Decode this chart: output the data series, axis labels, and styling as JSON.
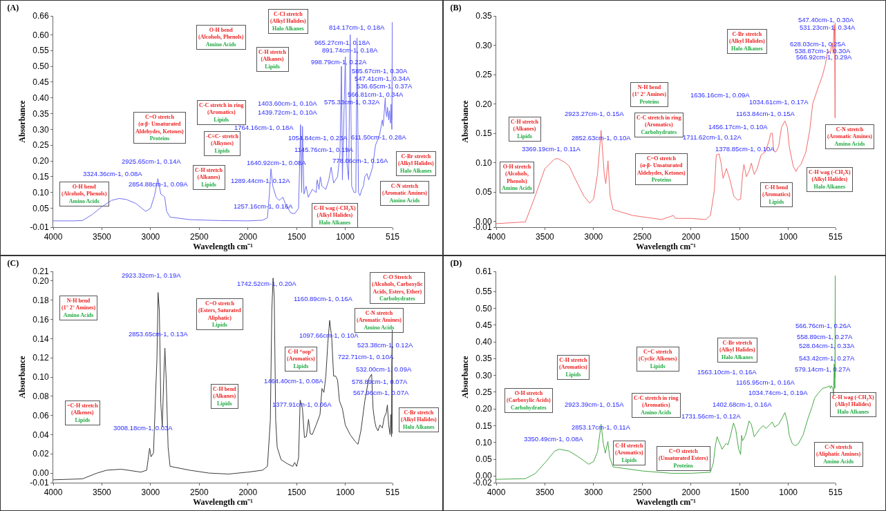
{
  "chart_data": [
    {
      "type": "line",
      "title": "(A)",
      "xlabel": "Wavelength cm⁻¹",
      "ylabel": "Absorbance",
      "xlim": [
        4000,
        515
      ],
      "xticks": [
        4000,
        3500,
        3000,
        2500,
        2000,
        1500,
        1000,
        515
      ],
      "ylim": [
        -0.01,
        0.66
      ],
      "yticks": [
        -0.01,
        0.05,
        {
          "value": 0.1,
          "label": "0.10"
        },
        0.15,
        {
          "value": 0.2,
          "label": "0.20"
        },
        0.25,
        {
          "value": 0.3,
          "label": "0.30"
        },
        0.35,
        {
          "value": 0.4,
          "label": "0.40"
        },
        0.45,
        {
          "value": 0.5,
          "label": "0.50"
        },
        0.55,
        {
          "value": 0.6,
          "label": "0.60"
        },
        0.66
      ],
      "x": [
        4000,
        3800,
        3700,
        3600,
        3500,
        3400,
        3324,
        3250,
        3150,
        3050,
        3000,
        2960,
        2925,
        2895,
        2870,
        2855,
        2835,
        2800,
        2600,
        2300,
        2000,
        1850,
        1800,
        1780,
        1764,
        1745,
        1710,
        1680,
        1641,
        1610,
        1560,
        1520,
        1480,
        1460,
        1448,
        1440,
        1425,
        1403,
        1380,
        1340,
        1300,
        1289,
        1270,
        1257,
        1240,
        1200,
        1170,
        1146,
        1120,
        1080,
        1055,
        1040,
        1030,
        1000,
        985,
        966,
        950,
        935,
        910,
        892,
        880,
        865,
        850,
        830,
        814,
        800,
        778,
        760,
        720,
        690,
        650,
        620,
        611,
        590,
        585,
        575,
        567,
        555,
        547,
        537,
        530,
        522,
        518,
        515
      ],
      "series": [
        {
          "color": "#6f6ff2",
          "values": [
            0.01,
            0.01,
            0.011,
            0.03,
            0.055,
            0.075,
            0.081,
            0.078,
            0.065,
            0.04,
            0.05,
            0.09,
            0.144,
            0.095,
            0.09,
            0.085,
            0.04,
            0.022,
            0.014,
            0.011,
            0.01,
            0.012,
            0.02,
            0.095,
            0.175,
            0.12,
            0.085,
            0.075,
            0.085,
            0.06,
            0.035,
            0.033,
            0.05,
            0.315,
            0.1,
            0.31,
            0.095,
            0.12,
            0.085,
            0.11,
            0.1,
            0.14,
            0.11,
            0.15,
            0.12,
            0.11,
            0.14,
            0.18,
            0.13,
            0.15,
            0.22,
            0.5,
            0.14,
            0.53,
            0.2,
            0.14,
            0.6,
            0.12,
            0.1,
            0.1,
            0.59,
            0.1,
            0.09,
            0.11,
            0.12,
            0.15,
            0.16,
            0.14,
            0.18,
            0.25,
            0.28,
            0.33,
            0.31,
            0.4,
            0.36,
            0.34,
            0.37,
            0.33,
            0.36,
            0.32,
            0.38,
            0.3,
            0.64,
            0.33
          ]
        }
      ],
      "annotations": [
        "C-Cl stretch\n(Alkyl Halides)\nHalo Alkanes",
        "O-H bend\n(Alcohols, Phenols)\nAmino Acids",
        "C-H stretch\n(Alkanes)\nLipids",
        "C-C stretch in ring\n(Aromatics)\nLipids",
        "C=O stretch\n(α-β- Unsaturated\nAldehydes, Ketones)\nProteins",
        "-C≡C- stretch\n(Alkynes)\nLipids",
        "C-H stretch\n(Alkanes)\nLipids",
        "O-H bend\n(Alcohols, Phenols)\nAmino Acids",
        "C-H wag (-CH₂X)\n(Alkyl Halides)\nHalo Alkanes",
        "C-N stretch\n(Aromatic Amines)\nAmino Acids",
        "C-Br stretch\n(Alkyl Halides)\nHalo Alkanes",
        "814.17cm-1, 0.18A",
        "965.27cm-1, 0.18A",
        "891.74cm-1, 0.18A",
        "998.79cm-1, 0.22A",
        "585.67cm-1, 0.30A",
        "547.41cm-1, 0.34A",
        "536.65cm-1, 0.37A",
        "566.81cm-1, 0.34A",
        "575.33cm-1, 0.32A",
        "611.50cm-1, 0.28A",
        "1403.60cm-1, 0.10A",
        "1439.72cm-1, 0.10A",
        "1764.16cm-1, 0.18A",
        "1054.84cm-1, 0.23A",
        "1145.76cm-1, 0.19A",
        "778.06cm-1, 0.16A",
        "1640.92cm-1, 0.08A",
        "1289.44cm-1, 0.12A",
        "1257.16cm-1, 0.16A",
        "2925.65cm-1, 0.14A",
        "2854.88cm-1, 0.09A",
        "3324.36cm-1, 0.08A"
      ]
    },
    {
      "type": "line",
      "title": "(B)",
      "xlabel": "Wavelength cm⁻¹",
      "ylabel": "Absorbance",
      "xlim": [
        4000,
        515
      ],
      "xticks": [
        4000,
        3500,
        3000,
        2500,
        2000,
        1500,
        1000,
        515
      ],
      "ylim": [
        -0.01,
        0.35
      ],
      "yticks": [
        -0.01,
        {
          "value": 0,
          "label": "0.00"
        },
        0.05,
        {
          "value": 0.1,
          "label": "0.10"
        },
        0.15,
        {
          "value": 0.2,
          "label": "0.20"
        },
        0.25,
        {
          "value": 0.3,
          "label": "0.30"
        },
        0.35
      ],
      "x": [
        4000,
        3700,
        3600,
        3500,
        3400,
        3369,
        3300,
        3250,
        3200,
        3100,
        3040,
        3000,
        2960,
        2923,
        2890,
        2875,
        2852,
        2830,
        2800,
        2600,
        2300,
        2180,
        2160,
        2000,
        1850,
        1800,
        1760,
        1740,
        1712,
        1690,
        1670,
        1636,
        1600,
        1560,
        1520,
        1490,
        1470,
        1456,
        1430,
        1400,
        1379,
        1350,
        1320,
        1280,
        1240,
        1200,
        1180,
        1164,
        1150,
        1130,
        1100,
        1070,
        1035,
        1010,
        990,
        950,
        920,
        900,
        870,
        820,
        780,
        750,
        700,
        650,
        620,
        600,
        580,
        567,
        555,
        547,
        540,
        531,
        525,
        520,
        517,
        515
      ],
      "series": [
        {
          "color": "#f26a6a",
          "values": [
            -0.004,
            -0.001,
            0.043,
            0.09,
            0.106,
            0.107,
            0.101,
            0.094,
            0.076,
            0.043,
            0.031,
            0.038,
            0.08,
            0.155,
            0.08,
            0.064,
            0.103,
            0.043,
            0.02,
            0.01,
            0.003,
            0.01,
            0.005,
            0.005,
            0.003,
            0.01,
            0.052,
            0.113,
            0.115,
            0.099,
            0.073,
            0.09,
            0.071,
            0.043,
            0.036,
            0.038,
            0.08,
            0.097,
            0.076,
            0.087,
            0.099,
            0.08,
            0.09,
            0.113,
            0.118,
            0.136,
            0.15,
            0.15,
            0.12,
            0.118,
            0.127,
            0.16,
            0.171,
            0.16,
            0.127,
            0.094,
            0.085,
            0.092,
            0.097,
            0.118,
            0.155,
            0.2,
            0.225,
            0.248,
            0.267,
            0.286,
            0.29,
            0.288,
            0.3,
            0.304,
            0.286,
            0.335,
            0.328,
            0.176,
            0.338,
            0.216
          ]
        }
      ],
      "annotations": [
        "C-Br stretch\n(Alkyl Halides)\nHalo Alkanes",
        "N-H bend\n(1° 2° Amines)\nProteins",
        "C-H stretch\n(Alkanes)\nLipids",
        "C-C stretch in ring\n(Aromatics)\nCarbohydrates",
        "O-H stretch\n(Alcohols,\nPhenols)\nAmino Acids",
        "C=O stretch\n(α-β- Unsaturated\nAldehydes, Ketones)\nProteins",
        "C-H bend\n(Aromatics)\nLipids",
        "C-H wag (-CH₂X)\n(Alkyl Halides)\nHalo Alkanes",
        "C-N stretch\n(Aromatic Amines)\nAmino Acids",
        "547.40cm-1, 0.30A",
        "531.23cm-1, 0.34A",
        "628.03cm-1, 0.25A",
        "538.87cm-1, 0.30A",
        "566.92cm-1, 0.29A",
        "1636.16cm-1, 0.09A",
        "1034.61cm-1, 0.17A",
        "1163.84cm-1, 0.15A",
        "1456.17cm-1, 0.10A",
        "1711.62cm-1, 0.12A",
        "1378.85cm-1, 0.10A",
        "2923.27cm-1, 0.15A",
        "2852.63cm-1, 0.10A",
        "3369.19cm-1, 0.11A"
      ]
    },
    {
      "type": "line",
      "title": "(C)",
      "xlabel": "Wavelength cm⁻¹",
      "ylabel": "Absorbance",
      "xlim": [
        4000,
        515
      ],
      "xticks": [
        4000,
        3500,
        3000,
        2500,
        2000,
        1500,
        1000,
        515
      ],
      "ylim": [
        -0.01,
        0.21
      ],
      "yticks": [
        -0.01,
        {
          "value": 0,
          "label": "0.00"
        },
        0.02,
        0.04,
        0.06,
        0.08,
        {
          "value": 0.1,
          "label": "0.10"
        },
        0.12,
        0.14,
        0.16,
        0.18,
        {
          "value": 0.2,
          "label": "0.20"
        },
        0.21
      ],
      "x": [
        4000,
        3700,
        3550,
        3450,
        3300,
        3100,
        3040,
        3010,
        2995,
        2970,
        2950,
        2935,
        2923,
        2910,
        2895,
        2880,
        2865,
        2853,
        2840,
        2820,
        2800,
        2600,
        2400,
        2200,
        2000,
        1850,
        1800,
        1770,
        1755,
        1742,
        1730,
        1715,
        1700,
        1660,
        1600,
        1540,
        1520,
        1500,
        1480,
        1464,
        1440,
        1420,
        1400,
        1378,
        1360,
        1340,
        1300,
        1260,
        1240,
        1220,
        1200,
        1180,
        1161,
        1140,
        1120,
        1100,
        1080,
        1060,
        1030,
        1000,
        950,
        900,
        870,
        840,
        800,
        760,
        730,
        715,
        700,
        685,
        665,
        645,
        620,
        600,
        579,
        568,
        555,
        540,
        532,
        525,
        523,
        518,
        516,
        515
      ],
      "series": [
        {
          "color": "#3a3a3a",
          "values": [
            -0.007,
            -0.006,
            0,
            0.003,
            0.004,
            0.001,
            0.003,
            0.026,
            0.017,
            0.021,
            0.078,
            0.118,
            0.188,
            0.169,
            0.073,
            0.048,
            0.098,
            0.13,
            0.098,
            0.027,
            0.007,
            0.003,
            0,
            -0.001,
            0.001,
            0.003,
            0.007,
            0.055,
            0.169,
            0.203,
            0.183,
            0.055,
            0.027,
            0.014,
            0.01,
            0.007,
            0.011,
            0.007,
            0.016,
            0.076,
            0.067,
            0.037,
            0.038,
            0.056,
            0.041,
            0.04,
            0.05,
            0.061,
            0.088,
            0.084,
            0.101,
            0.135,
            0.159,
            0.141,
            0.101,
            0.101,
            0.097,
            0.075,
            0.067,
            0.05,
            0.04,
            0.033,
            0.03,
            0.044,
            0.075,
            0.098,
            0.103,
            0.067,
            0.055,
            0.048,
            0.044,
            0.05,
            0.047,
            0.058,
            0.063,
            0.071,
            0.05,
            0.04,
            0.061,
            0.038,
            0.112,
            0.149,
            0.041,
            0.112
          ]
        }
      ],
      "annotations": [
        "N-H bend\n(1° 2° Amines)\nAmino Acids",
        "C=O stretch\n(Esters, Saturated\nAliphatic)\nLipids",
        "C-O Stretch\n(Alcohols, Carboxylic\nAcids, Esters, Ether)\nCarbohydrates",
        "C-N stretch\n(Aromatic Amines)\nAmino Acids",
        "C-H “oop”\n(Aromatics)\nLipids",
        "C-H bend\n(Alkanes)\nLipids",
        "=C-H stretch\n(Alkenes)\nLipids",
        "C-Br stretch\n(Alkyl Halides)\nHalo Alkanes",
        "2923.32cm-1, 0.19A",
        "2853.65cm-1, 0.13A",
        "1742.52cm-1, 0.20A",
        "1160.89cm-1, 0.16A",
        "1097.66cm-1, 0.10A",
        "523.38cm-1, 0.12A",
        "722.71cm-1, 0.10A",
        "532.00cm-1, 0.09A",
        "578.89cm-1, 0.07A",
        "567.96cm-1, 0.07A",
        "1464.40cm-1, 0.08A",
        "1377.91cm-1, 0.06A",
        "3008.18cm-1, 0.03A"
      ]
    },
    {
      "type": "line",
      "title": "(D)",
      "xlabel": "Wavelength cm⁻¹",
      "ylabel": "Absorbance",
      "xlim": [
        4000,
        515
      ],
      "xticks": [
        4000,
        3500,
        3000,
        2500,
        2000,
        1500,
        1000,
        515
      ],
      "ylim": [
        -0.02,
        0.61
      ],
      "yticks": [
        -0.02,
        {
          "value": 0,
          "label": "0.00"
        },
        0.05,
        {
          "value": 0.1,
          "label": "0.10"
        },
        0.15,
        {
          "value": 0.2,
          "label": "0.20"
        },
        0.25,
        {
          "value": 0.3,
          "label": "0.30"
        },
        0.35,
        {
          "value": 0.4,
          "label": "0.40"
        },
        0.45,
        {
          "value": 0.5,
          "label": "0.50"
        },
        0.55,
        0.61
      ],
      "x": [
        4000,
        3700,
        3600,
        3500,
        3400,
        3350,
        3250,
        3150,
        3050,
        3000,
        2960,
        2923,
        2900,
        2880,
        2853,
        2835,
        2800,
        2500,
        2200,
        2000,
        1800,
        1770,
        1750,
        1732,
        1710,
        1680,
        1640,
        1620,
        1600,
        1563,
        1540,
        1510,
        1490,
        1480,
        1470,
        1440,
        1403,
        1380,
        1350,
        1300,
        1260,
        1230,
        1200,
        1166,
        1140,
        1100,
        1060,
        1035,
        1010,
        990,
        960,
        930,
        900,
        850,
        800,
        760,
        730,
        700,
        650,
        600,
        580,
        567,
        559,
        543,
        535,
        528,
        522,
        518,
        516,
        515
      ],
      "series": [
        {
          "color": "#45a845",
          "values": [
            -0.01,
            -0.008,
            0.007,
            0.039,
            0.074,
            0.08,
            0.074,
            0.056,
            0.035,
            0.043,
            0.072,
            0.154,
            0.097,
            0.068,
            0.103,
            0.056,
            0.027,
            0.015,
            0.008,
            0.008,
            0.011,
            0.039,
            0.089,
            0.117,
            0.101,
            0.08,
            0.097,
            0.093,
            0.113,
            0.158,
            0.138,
            0.08,
            0.064,
            0.121,
            0.105,
            0.121,
            0.164,
            0.154,
            0.117,
            0.138,
            0.15,
            0.142,
            0.15,
            0.161,
            0.146,
            0.154,
            0.175,
            0.189,
            0.162,
            0.121,
            0.097,
            0.09,
            0.095,
            0.121,
            0.17,
            0.203,
            0.232,
            0.244,
            0.261,
            0.265,
            0.269,
            0.261,
            0.269,
            0.261,
            0.24,
            0.334,
            0.261,
            0.597,
            0.293,
            0.416
          ]
        }
      ],
      "annotations": [
        "C-Br stretch\n(Alkyl Halides)\nHalo Alkanes",
        "C=C stretch\n(Cyclic Alkenes)\nLipids",
        "C-H stretch\n(Aromatics)\nLipids",
        "O-H stretch\n(Carboxylic Acids)\nCarbohydrates",
        "C-C stretch in ring\n(Aromatics)\nAmino Acids",
        "C-H stretch\n(Aromatics)\nLipids",
        "C=O stretch\n(Unsaturated Esters)\nProteins",
        "C-H wag (-CH₂X)\n(Alkyl Halides)\nHalo Alkanes",
        "C-N stretch\n(Aliphatic Amines)\nAmino Acids",
        "566.76cm-1, 0.26A",
        "558.89cm-1, 0.27A",
        "528.04cm-1, 0.33A",
        "543.42cm-1, 0.27A",
        "579.14cm-1, 0.27A",
        "1563.10cm-1, 0.16A",
        "1165.95cm-1, 0.16A",
        "1034.74cm-1, 0.19A",
        "1402.68cm-1, 0.16A",
        "1731.56cm-1, 0.12A",
        "2923.39cm-1, 0.15A",
        "2853.17cm-1, 0.11A",
        "3350.49cm-1, 0.08A"
      ]
    }
  ]
}
